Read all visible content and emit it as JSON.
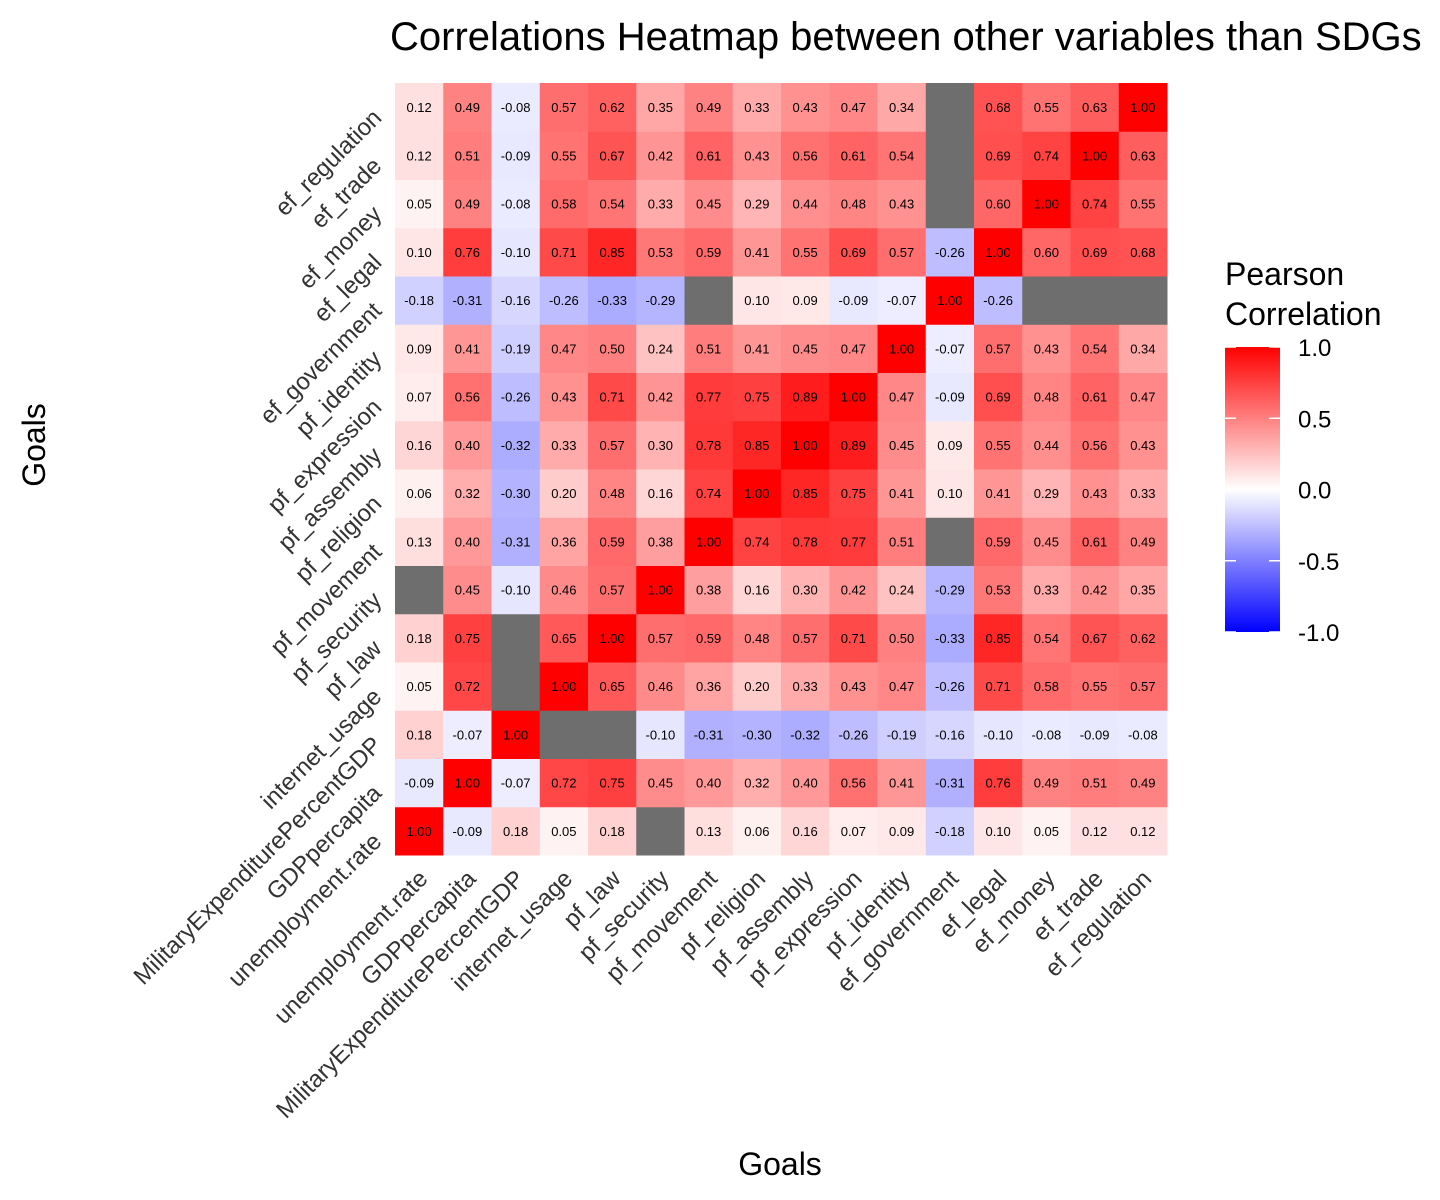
{
  "chart_data": {
    "type": "heatmap",
    "title": "Correlations Heatmap between other variables than SDGs",
    "xlabel": "Goals",
    "ylabel": "Goals",
    "legend": {
      "title_line1": "Pearson",
      "title_line2": "Correlation",
      "range": [
        -1,
        1
      ],
      "ticks": [
        "1.0",
        "0.5",
        "0.0",
        "-0.5",
        "-1.0"
      ],
      "tick_values": [
        1.0,
        0.5,
        0.0,
        -0.5,
        -1.0
      ],
      "placement": "right"
    },
    "colors": {
      "low": "#0000ff",
      "mid": "#ffffff",
      "high": "#ff0000",
      "na": "#6e6e6e",
      "grid": "#ebebeb"
    },
    "variables": [
      "unemployment.rate",
      "GDPpercapita",
      "MilitaryExpenditurePercentGDP",
      "internet_usage",
      "pf_law",
      "pf_security",
      "pf_movement",
      "pf_religion",
      "pf_assembly",
      "pf_expression",
      "pf_identity",
      "ef_government",
      "ef_legal",
      "ef_money",
      "ef_trade",
      "ef_regulation"
    ],
    "matrix": [
      [
        1.0,
        -0.09,
        0.18,
        0.05,
        0.18,
        null,
        0.13,
        0.06,
        0.16,
        0.07,
        0.09,
        -0.18,
        0.1,
        0.05,
        0.12,
        0.12
      ],
      [
        -0.09,
        1.0,
        -0.07,
        0.72,
        0.75,
        0.45,
        0.4,
        0.32,
        0.4,
        0.56,
        0.41,
        -0.31,
        0.76,
        0.49,
        0.51,
        0.49
      ],
      [
        0.18,
        -0.07,
        1.0,
        null,
        null,
        -0.1,
        -0.31,
        -0.3,
        -0.32,
        -0.26,
        -0.19,
        -0.16,
        -0.1,
        -0.08,
        -0.09,
        -0.08
      ],
      [
        0.05,
        0.72,
        null,
        1.0,
        0.65,
        0.46,
        0.36,
        0.2,
        0.33,
        0.43,
        0.47,
        -0.26,
        0.71,
        0.58,
        0.55,
        0.57
      ],
      [
        0.18,
        0.75,
        null,
        0.65,
        1.0,
        0.57,
        0.59,
        0.48,
        0.57,
        0.71,
        0.5,
        -0.33,
        0.85,
        0.54,
        0.67,
        0.62
      ],
      [
        null,
        0.45,
        -0.1,
        0.46,
        0.57,
        1.0,
        0.38,
        0.16,
        0.3,
        0.42,
        0.24,
        -0.29,
        0.53,
        0.33,
        0.42,
        0.35
      ],
      [
        0.13,
        0.4,
        -0.31,
        0.36,
        0.59,
        0.38,
        1.0,
        0.74,
        0.78,
        0.77,
        0.51,
        null,
        0.59,
        0.45,
        0.61,
        0.49
      ],
      [
        0.06,
        0.32,
        -0.3,
        0.2,
        0.48,
        0.16,
        0.74,
        1.0,
        0.85,
        0.75,
        0.41,
        0.1,
        0.41,
        0.29,
        0.43,
        0.33
      ],
      [
        0.16,
        0.4,
        -0.32,
        0.33,
        0.57,
        0.3,
        0.78,
        0.85,
        1.0,
        0.89,
        0.45,
        0.09,
        0.55,
        0.44,
        0.56,
        0.43
      ],
      [
        0.07,
        0.56,
        -0.26,
        0.43,
        0.71,
        0.42,
        0.77,
        0.75,
        0.89,
        1.0,
        0.47,
        -0.09,
        0.69,
        0.48,
        0.61,
        0.47
      ],
      [
        0.09,
        0.41,
        -0.19,
        0.47,
        0.5,
        0.24,
        0.51,
        0.41,
        0.45,
        0.47,
        1.0,
        -0.07,
        0.57,
        0.43,
        0.54,
        0.34
      ],
      [
        -0.18,
        -0.31,
        -0.16,
        -0.26,
        -0.33,
        -0.29,
        null,
        0.1,
        0.09,
        -0.09,
        -0.07,
        1.0,
        -0.26,
        null,
        null,
        null
      ],
      [
        0.1,
        0.76,
        -0.1,
        0.71,
        0.85,
        0.53,
        0.59,
        0.41,
        0.55,
        0.69,
        0.57,
        -0.26,
        1.0,
        0.6,
        0.69,
        0.68
      ],
      [
        0.05,
        0.49,
        -0.08,
        0.58,
        0.54,
        0.33,
        0.45,
        0.29,
        0.44,
        0.48,
        0.43,
        null,
        0.6,
        1.0,
        0.74,
        0.55
      ],
      [
        0.12,
        0.51,
        -0.09,
        0.55,
        0.67,
        0.42,
        0.61,
        0.43,
        0.56,
        0.61,
        0.54,
        null,
        0.69,
        0.74,
        1.0,
        0.63
      ],
      [
        0.12,
        0.49,
        -0.08,
        0.57,
        0.62,
        0.35,
        0.49,
        0.33,
        0.43,
        0.47,
        0.34,
        null,
        0.68,
        0.55,
        0.63,
        1.0
      ]
    ],
    "matrix_orientation": "matrix[row][col], row = y-axis variable (bottom to top), col = x-axis variable (left to right)"
  }
}
